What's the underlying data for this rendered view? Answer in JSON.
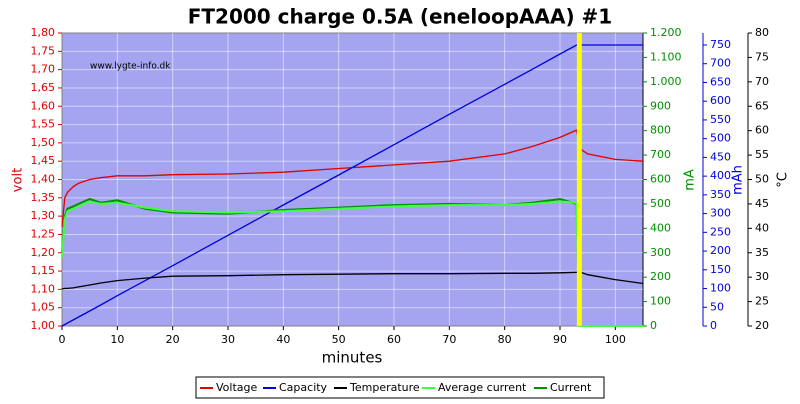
{
  "chart_data": {
    "type": "line",
    "title": "FT2000 charge 0.5A (eneloopAAA) #1",
    "watermark": "www.lygte-info.dk",
    "xlabel": "minutes",
    "ylabel": "volt",
    "y2label": "mA",
    "y3label": "mAh",
    "y4label": "°C",
    "grid": true,
    "legend": "bottom",
    "highlight_x": 93.5,
    "highlight_color": "#ffff00",
    "xlim": [
      0,
      105
    ],
    "xticks": [
      0,
      10,
      20,
      30,
      40,
      50,
      60,
      70,
      80,
      90,
      100
    ],
    "ylim": [
      1.0,
      1.8
    ],
    "yticks": [
      {
        "value": 1.0,
        "label": "1,00"
      },
      {
        "value": 1.05,
        "label": "1,05"
      },
      {
        "value": 1.1,
        "label": "1,10"
      },
      {
        "value": 1.15,
        "label": "1,15"
      },
      {
        "value": 1.2,
        "label": "1,20"
      },
      {
        "value": 1.25,
        "label": "1,25"
      },
      {
        "value": 1.3,
        "label": "1,30"
      },
      {
        "value": 1.35,
        "label": "1,35"
      },
      {
        "value": 1.4,
        "label": "1,40"
      },
      {
        "value": 1.45,
        "label": "1,45"
      },
      {
        "value": 1.5,
        "label": "1,50"
      },
      {
        "value": 1.55,
        "label": "1,55"
      },
      {
        "value": 1.6,
        "label": "1,60"
      },
      {
        "value": 1.65,
        "label": "1,65"
      },
      {
        "value": 1.7,
        "label": "1,70"
      },
      {
        "value": 1.75,
        "label": "1,75"
      },
      {
        "value": 1.8,
        "label": "1,80"
      }
    ],
    "y2lim": [
      0,
      1200
    ],
    "y2ticks": [
      0,
      100,
      200,
      300,
      400,
      500,
      600,
      700,
      800,
      900,
      {
        "value": 1000,
        "label": "1.000"
      },
      {
        "value": 1100,
        "label": "1.100"
      },
      {
        "value": 1200,
        "label": "1.200"
      }
    ],
    "y3lim": [
      0,
      782
    ],
    "y3ticks": [
      0,
      50,
      100,
      150,
      200,
      250,
      300,
      350,
      400,
      450,
      500,
      550,
      600,
      650,
      700,
      750
    ],
    "y4lim": [
      20,
      80
    ],
    "y4ticks": [
      20,
      25,
      30,
      35,
      40,
      45,
      50,
      55,
      60,
      65,
      70,
      75,
      80
    ],
    "x": [
      0,
      0.5,
      1,
      2,
      3,
      5,
      7,
      10,
      15,
      20,
      30,
      40,
      50,
      60,
      70,
      80,
      85,
      90,
      93,
      93.5,
      94,
      95,
      100,
      105
    ],
    "series": [
      {
        "name": "Voltage",
        "color": "#e00000",
        "axis": "y",
        "values": [
          1.27,
          1.35,
          1.365,
          1.38,
          1.39,
          1.4,
          1.405,
          1.41,
          1.41,
          1.413,
          1.415,
          1.42,
          1.43,
          1.44,
          1.45,
          1.47,
          1.49,
          1.515,
          1.535,
          1.49,
          1.48,
          1.47,
          1.455,
          1.45
        ]
      },
      {
        "name": "Capacity",
        "color": "#0000e0",
        "axis": "y3",
        "values": [
          0,
          4,
          8,
          16,
          24,
          40,
          56,
          81,
          121,
          161,
          242,
          323,
          403,
          484,
          565,
          645,
          685,
          726,
          750,
          750,
          750,
          750,
          750,
          750
        ]
      },
      {
        "name": "Temperature",
        "color": "#000000",
        "axis": "y4",
        "values": [
          27.6,
          27.7,
          27.7,
          27.8,
          28.0,
          28.4,
          28.8,
          29.3,
          29.8,
          30.2,
          30.3,
          30.5,
          30.6,
          30.7,
          30.7,
          30.8,
          30.8,
          30.9,
          31.0,
          31.0,
          30.9,
          30.5,
          29.5,
          28.7
        ]
      },
      {
        "name": "Current",
        "color": "#009000",
        "axis": "y2",
        "values": [
          300,
          450,
          480,
          490,
          500,
          520,
          505,
          515,
          480,
          465,
          460,
          475,
          485,
          495,
          500,
          495,
          505,
          520,
          500,
          0,
          0,
          0,
          0,
          0
        ]
      },
      {
        "name": "Average current",
        "color": "#40ff40",
        "axis": "y2",
        "values": [
          280,
          440,
          470,
          480,
          490,
          510,
          500,
          505,
          485,
          470,
          465,
          470,
          480,
          490,
          495,
          495,
          500,
          510,
          505,
          0,
          0,
          0,
          0,
          0
        ]
      }
    ]
  }
}
